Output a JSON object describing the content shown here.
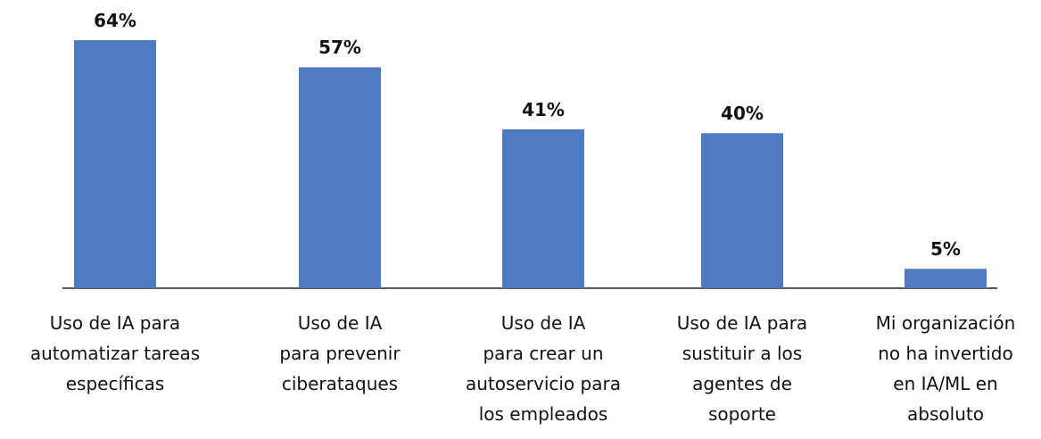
{
  "chart_data": {
    "type": "bar",
    "categories": [
      "Uso de IA para\nautomatizar tareas\nespecíficas",
      "Uso de IA\npara prevenir\nciberataques",
      "Uso de IA\npara crear un\nautoservicio para\nlos empleados",
      "Uso de IA para\nsustituir a los\nagentes de\nsoporte",
      "Mi organización\nno ha invertido\nen IA/ML en\nabsoluto"
    ],
    "values": [
      64,
      57,
      41,
      40,
      5
    ],
    "value_labels": [
      "64%",
      "57%",
      "41%",
      "40%",
      "5%"
    ],
    "color": "#4f7cc0"
  }
}
